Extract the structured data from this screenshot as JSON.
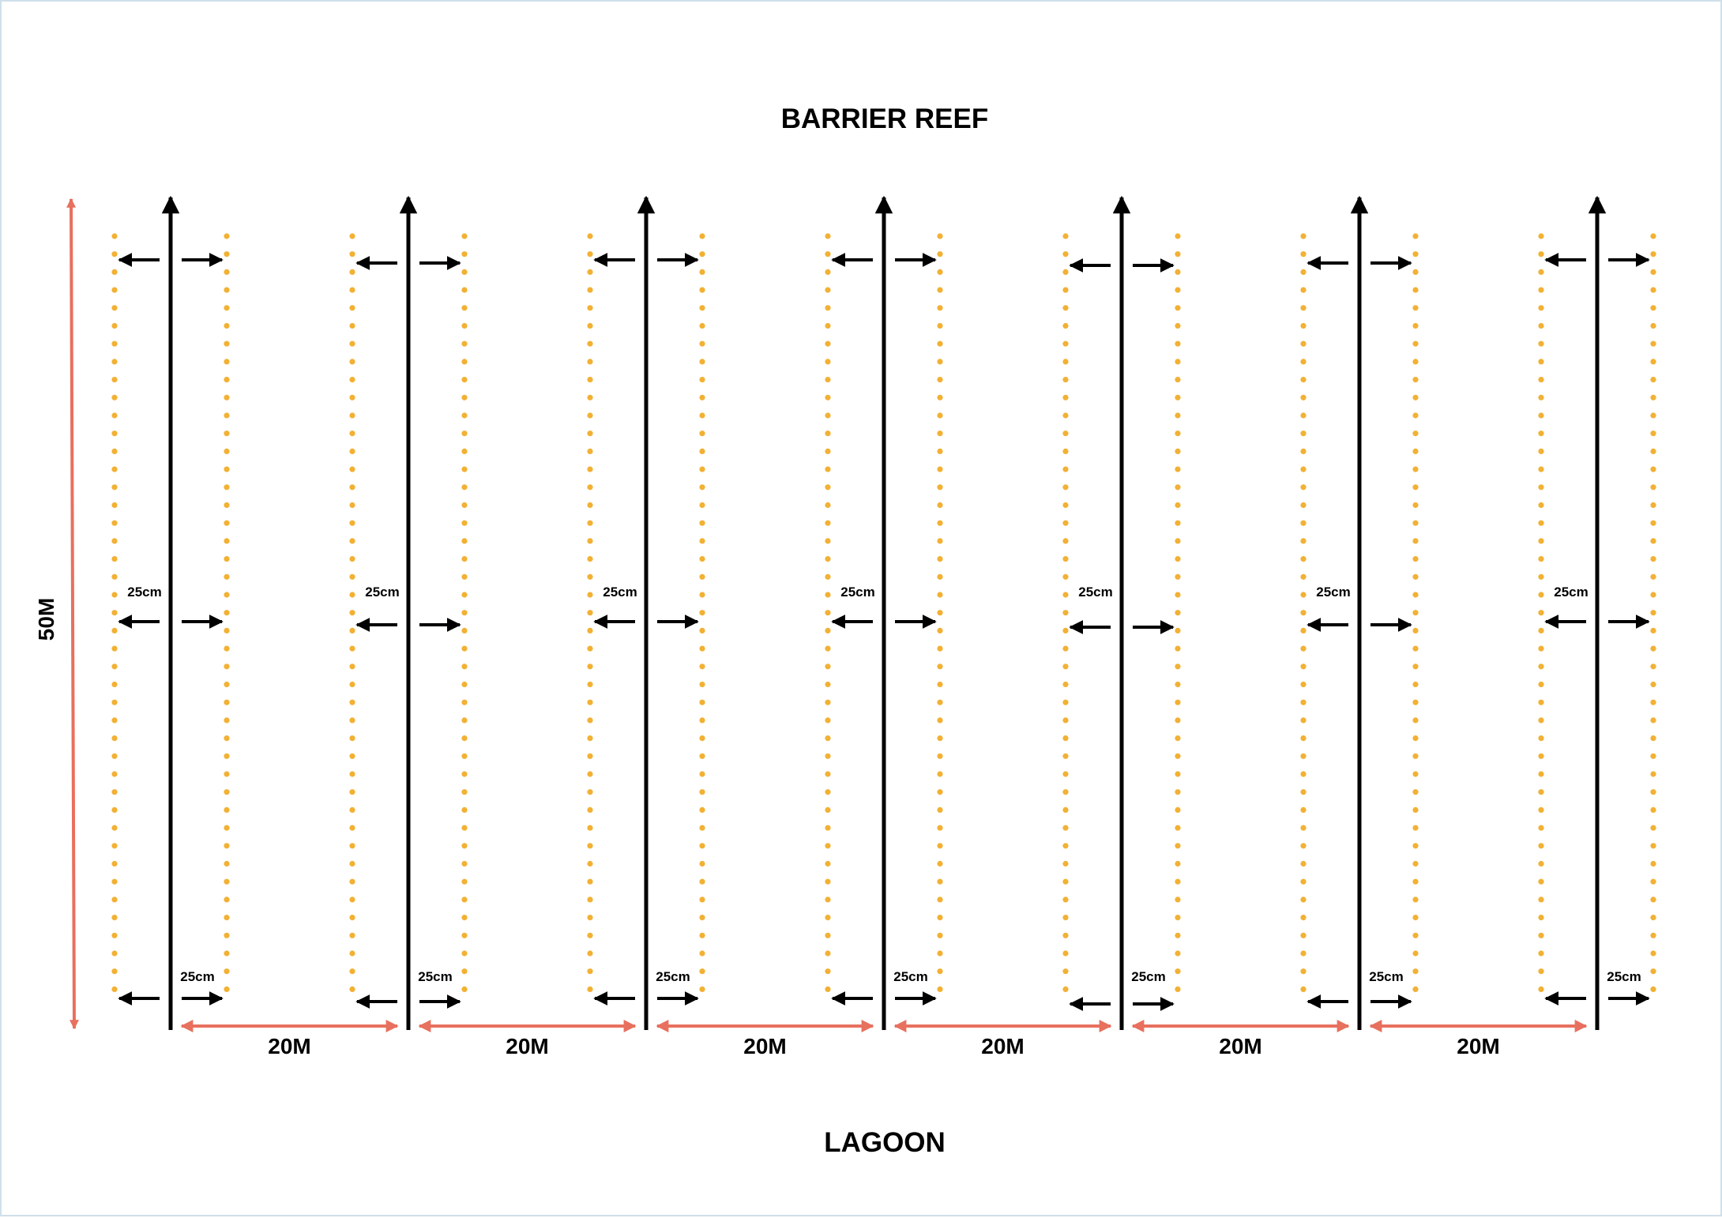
{
  "diagram": {
    "top_label": "BARRIER REEF",
    "bottom_label": "LAGOON",
    "length_label": "50M",
    "spacing_label": "20M",
    "offset_label": "25cm",
    "transect_count": 7,
    "colors": {
      "transect": "#000000",
      "quadrat_dots": "#f2b134",
      "dimension": "#e8705e",
      "text": "#000000"
    }
  }
}
